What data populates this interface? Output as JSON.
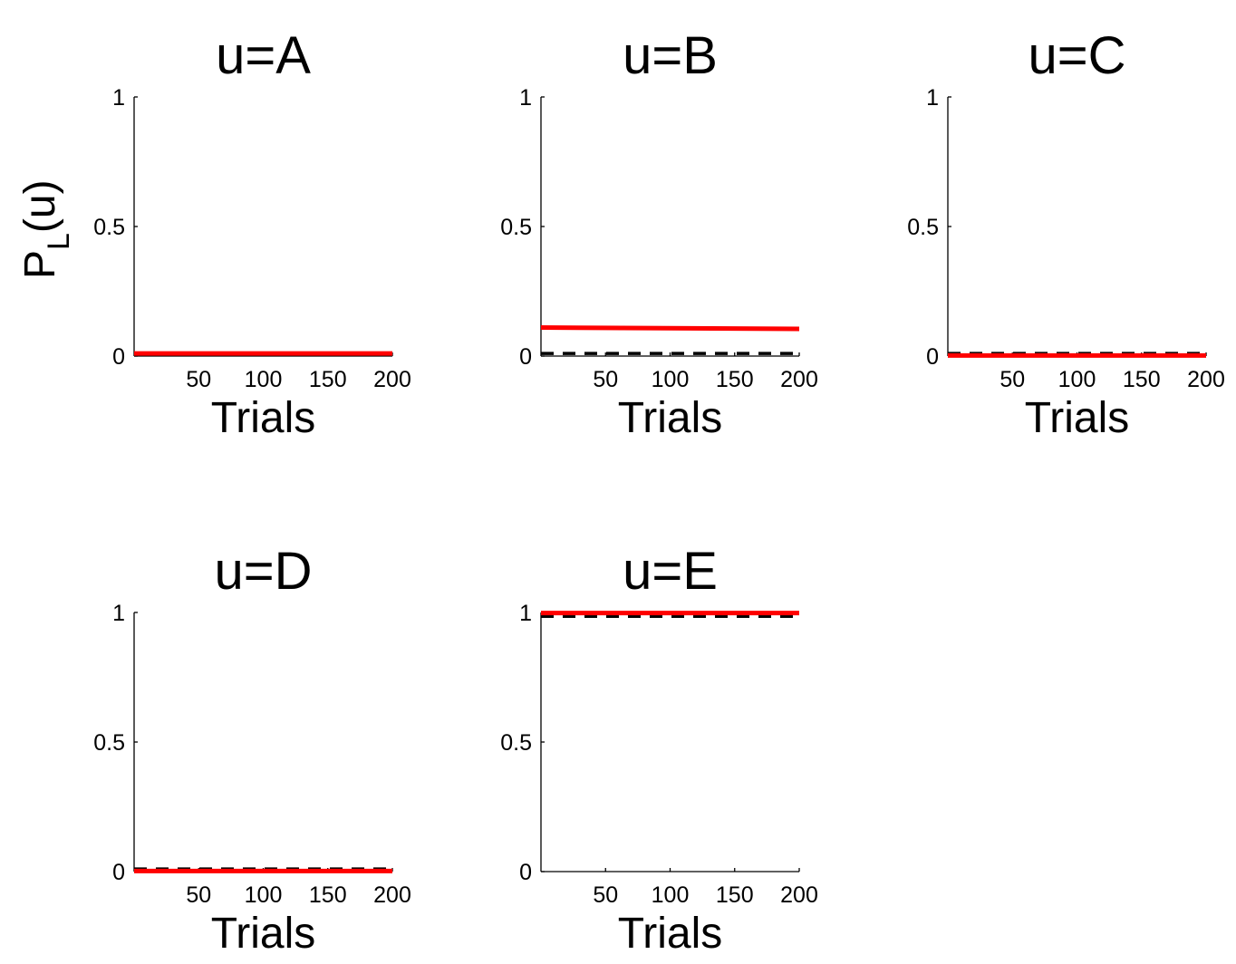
{
  "chart_data": [
    {
      "type": "line",
      "title": "u=A",
      "xlabel": "Trials",
      "ylabel": "P",
      "ylabel_subscript": "L",
      "ylabel_suffix": "(u)",
      "xlim": [
        0,
        200
      ],
      "ylim": [
        0,
        1
      ],
      "xticks": [
        50,
        100,
        150,
        200
      ],
      "yticks": [
        0,
        0.5,
        1
      ],
      "xtick_labels": [
        "50",
        "100",
        "150",
        "200"
      ],
      "ytick_labels": [
        "0",
        "0.5",
        "1"
      ],
      "grid": false,
      "series": [
        {
          "style": "dashed",
          "color": "#000000",
          "x": [
            0,
            200
          ],
          "y": [
            0.01,
            0.01
          ]
        },
        {
          "style": "solid",
          "color": "#ff0000",
          "x": [
            0,
            200
          ],
          "y": [
            0.01,
            0.01
          ]
        }
      ]
    },
    {
      "type": "line",
      "title": "u=B",
      "xlabel": "Trials",
      "xlim": [
        0,
        200
      ],
      "ylim": [
        0,
        1
      ],
      "xticks": [
        50,
        100,
        150,
        200
      ],
      "yticks": [
        0,
        0.5,
        1
      ],
      "xtick_labels": [
        "50",
        "100",
        "150",
        "200"
      ],
      "ytick_labels": [
        "0",
        "0.5",
        "1"
      ],
      "grid": false,
      "series": [
        {
          "style": "dashed",
          "color": "#000000",
          "x": [
            0,
            200
          ],
          "y": [
            0.01,
            0.01
          ]
        },
        {
          "style": "solid",
          "color": "#ff0000",
          "x": [
            0,
            200
          ],
          "y": [
            0.11,
            0.105
          ]
        }
      ]
    },
    {
      "type": "line",
      "title": "u=C",
      "xlabel": "Trials",
      "xlim": [
        0,
        200
      ],
      "ylim": [
        0,
        1
      ],
      "xticks": [
        50,
        100,
        150,
        200
      ],
      "yticks": [
        0,
        0.5,
        1
      ],
      "xtick_labels": [
        "50",
        "100",
        "150",
        "200"
      ],
      "ytick_labels": [
        "0",
        "0.5",
        "1"
      ],
      "grid": false,
      "series": [
        {
          "style": "dashed",
          "color": "#000000",
          "x": [
            0,
            200
          ],
          "y": [
            0.01,
            0.01
          ]
        },
        {
          "style": "solid",
          "color": "#ff0000",
          "x": [
            0,
            200
          ],
          "y": [
            0.002,
            0.002
          ]
        }
      ]
    },
    {
      "type": "line",
      "title": "u=D",
      "xlabel": "Trials",
      "xlim": [
        0,
        200
      ],
      "ylim": [
        0,
        1
      ],
      "xticks": [
        50,
        100,
        150,
        200
      ],
      "yticks": [
        0,
        0.5,
        1
      ],
      "xtick_labels": [
        "50",
        "100",
        "150",
        "200"
      ],
      "ytick_labels": [
        "0",
        "0.5",
        "1"
      ],
      "grid": false,
      "series": [
        {
          "style": "dashed",
          "color": "#000000",
          "x": [
            0,
            200
          ],
          "y": [
            0.01,
            0.01
          ]
        },
        {
          "style": "solid",
          "color": "#ff0000",
          "x": [
            0,
            200
          ],
          "y": [
            0.002,
            0.002
          ]
        }
      ]
    },
    {
      "type": "line",
      "title": "u=E",
      "xlabel": "Trials",
      "xlim": [
        0,
        200
      ],
      "ylim": [
        0,
        1
      ],
      "xticks": [
        50,
        100,
        150,
        200
      ],
      "yticks": [
        0,
        0.5,
        1
      ],
      "xtick_labels": [
        "50",
        "100",
        "150",
        "200"
      ],
      "ytick_labels": [
        "0",
        "0.5",
        "1"
      ],
      "grid": false,
      "series": [
        {
          "style": "dashed",
          "color": "#000000",
          "x": [
            0,
            200
          ],
          "y": [
            0.985,
            0.985
          ]
        },
        {
          "style": "solid",
          "color": "#ff0000",
          "x": [
            0,
            200
          ],
          "y": [
            0.998,
            0.998
          ]
        }
      ]
    }
  ]
}
